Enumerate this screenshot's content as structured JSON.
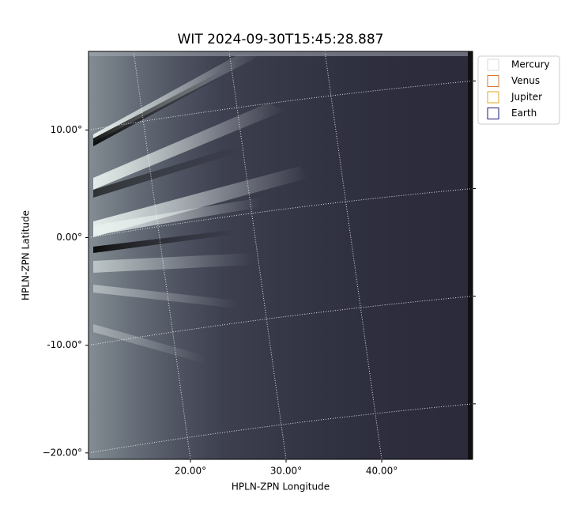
{
  "chart_data": {
    "type": "image",
    "title": "WIT 2024-09-30T15:45:28.887",
    "x_label": "HPLN-ZPN Longitude",
    "y_label": "HPLN-ZPN Latitude",
    "xlim": [
      9.34,
      49.5
    ],
    "ylim": [
      17.3,
      -20.6
    ],
    "xticks": [
      {
        "value": 20,
        "label": "20.00°"
      },
      {
        "value": 30,
        "label": "30.00°"
      },
      {
        "value": 40,
        "label": "40.00°"
      }
    ],
    "yticks": [
      {
        "value": 10,
        "label": "10.00°"
      },
      {
        "value": 0,
        "label": "0.00°"
      },
      {
        "value": -10,
        "label": "-10.00°"
      },
      {
        "value": -20,
        "label": "−20.00°"
      }
    ],
    "grid": true,
    "legend": "upper right",
    "legend_entries": [
      {
        "name": "Mercury",
        "color": "#d8d8d8"
      },
      {
        "name": "Venus",
        "color": "#d9773a"
      },
      {
        "name": "Jupiter",
        "color": "#e0aa20"
      },
      {
        "name": "Earth",
        "color": "#1a1a7a"
      }
    ]
  }
}
